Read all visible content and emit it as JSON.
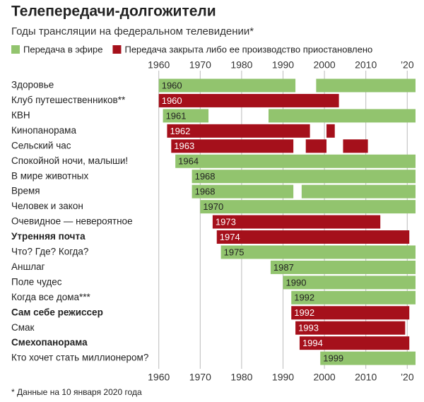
{
  "chart_data": {
    "type": "gantt",
    "title": "Телепередачи-долгожители",
    "subtitle": "Годы трансляции на федеральном телевидении*",
    "series": [
      {
        "name": "Передача в эфире",
        "color": "#92c46e"
      },
      {
        "name": "Передача закрыта либо ее производство приостановлено",
        "color": "#a5101b"
      }
    ],
    "xlim": [
      1958,
      2022
    ],
    "xticks": [
      1960,
      1970,
      1980,
      1990,
      2000,
      2010,
      {
        "value": 2020,
        "label": "’20"
      }
    ],
    "grid": true,
    "rows": [
      {
        "name": "Здоровье",
        "segments": [
          {
            "start": 1960,
            "end": 1993,
            "status": 0
          },
          {
            "start": 1998,
            "end": 2022,
            "status": 0
          }
        ]
      },
      {
        "name": "Клуб путешественников**",
        "segments": [
          {
            "start": 1960,
            "end": 2003.5,
            "status": 1
          }
        ]
      },
      {
        "name": "КВН",
        "segments": [
          {
            "start": 1961,
            "end": 1972,
            "status": 0
          },
          {
            "start": 1986.5,
            "end": 2022,
            "status": 0
          }
        ]
      },
      {
        "name": "Кинопанорама",
        "segments": [
          {
            "start": 1962,
            "end": 1996.5,
            "status": 1
          },
          {
            "start": 2000.5,
            "end": 2002.5,
            "status": 1
          }
        ]
      },
      {
        "name": "Сельский час",
        "segments": [
          {
            "start": 1963,
            "end": 1992.5,
            "status": 1
          },
          {
            "start": 1995.5,
            "end": 2000.5,
            "status": 1
          },
          {
            "start": 2004.5,
            "end": 2010.5,
            "status": 1
          }
        ]
      },
      {
        "name": "Спокойной ночи, малыши!",
        "segments": [
          {
            "start": 1964,
            "end": 2022,
            "status": 0
          }
        ]
      },
      {
        "name": "В мире животных",
        "segments": [
          {
            "start": 1968,
            "end": 2022,
            "status": 0
          }
        ]
      },
      {
        "name": "Время",
        "segments": [
          {
            "start": 1968,
            "end": 1992.5,
            "status": 0
          },
          {
            "start": 1994.5,
            "end": 2022,
            "status": 0
          }
        ]
      },
      {
        "name": "Человек и закон",
        "segments": [
          {
            "start": 1970,
            "end": 2022,
            "status": 0
          }
        ]
      },
      {
        "name": "Очевидное — невероятное",
        "segments": [
          {
            "start": 1973,
            "end": 2013.5,
            "status": 1
          }
        ]
      },
      {
        "name": "Утренняя почта",
        "bold": true,
        "segments": [
          {
            "start": 1974,
            "end": 2020.5,
            "status": 1
          }
        ]
      },
      {
        "name": "Что? Где? Когда?",
        "segments": [
          {
            "start": 1975,
            "end": 2022,
            "status": 0
          }
        ]
      },
      {
        "name": "Аншлаг",
        "segments": [
          {
            "start": 1987,
            "end": 2022,
            "status": 0
          }
        ]
      },
      {
        "name": "Поле чудес",
        "segments": [
          {
            "start": 1990,
            "end": 2022,
            "status": 0
          }
        ]
      },
      {
        "name": "Когда все дома***",
        "segments": [
          {
            "start": 1992,
            "end": 2022,
            "status": 0
          }
        ]
      },
      {
        "name": "Сам себе режиссер",
        "bold": true,
        "segments": [
          {
            "start": 1992,
            "end": 2020.5,
            "status": 1
          }
        ]
      },
      {
        "name": "Смак",
        "segments": [
          {
            "start": 1993,
            "end": 2019.5,
            "status": 1
          }
        ]
      },
      {
        "name": "Смехопанорама",
        "bold": true,
        "segments": [
          {
            "start": 1994,
            "end": 2020.5,
            "status": 1
          }
        ]
      },
      {
        "name": "Кто хочет стать миллионером?",
        "segments": [
          {
            "start": 1999,
            "end": 2022,
            "status": 0
          }
        ]
      }
    ],
    "note": "*   Данные на 10 января 2020 года"
  }
}
